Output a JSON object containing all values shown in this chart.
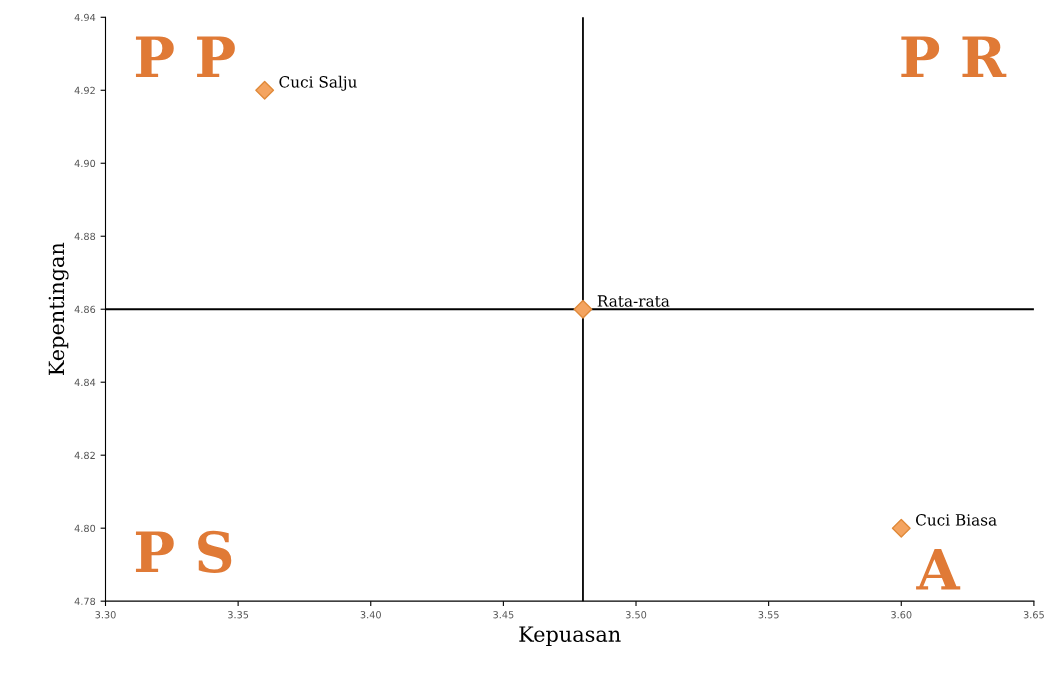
{
  "chart_data": {
    "type": "scatter",
    "xlabel": "Kepuasan",
    "ylabel": "Kepentingan",
    "x": [
      3.36,
      3.48,
      3.6
    ],
    "series": [
      {
        "color": "#f4a460",
        "values": [
          4.92,
          4.86,
          4.8
        ]
      }
    ],
    "xlim": [
      3.3,
      3.65
    ],
    "xticks": [
      {
        "value": 3.3,
        "label": "3.30"
      },
      {
        "value": 3.35,
        "label": "3.35"
      },
      {
        "value": 3.4,
        "label": "3.40"
      },
      {
        "value": 3.45,
        "label": "3.45"
      },
      {
        "value": 3.5,
        "label": "3.50"
      },
      {
        "value": 3.55,
        "label": "3.55"
      },
      {
        "value": 3.6,
        "label": "3.60"
      },
      {
        "value": 3.65,
        "label": "3.65"
      }
    ],
    "ylim": [
      4.78,
      4.94
    ],
    "yticks": [
      4.78,
      {
        "value": 4.8,
        "label": "4.80"
      },
      4.82,
      4.84,
      4.86,
      4.88,
      {
        "value": 4.9,
        "label": "4.90"
      },
      4.92,
      4.94
    ],
    "ref_lines": [
      {
        "axis": "x",
        "value": 3.48,
        "color": "#000000"
      },
      {
        "axis": "y",
        "value": 4.86,
        "color": "#000000"
      }
    ],
    "marker": "diamond",
    "grid": false,
    "annotations": [
      {
        "text": "Cuci Salju",
        "x": 3.36,
        "y": 4.92
      },
      {
        "text": "Rata-rata",
        "x": 3.48,
        "y": 4.86
      },
      {
        "text": "Cuci Biasa",
        "x": 3.6,
        "y": 4.8
      },
      "P P",
      "P R",
      "P S",
      "A"
    ]
  }
}
